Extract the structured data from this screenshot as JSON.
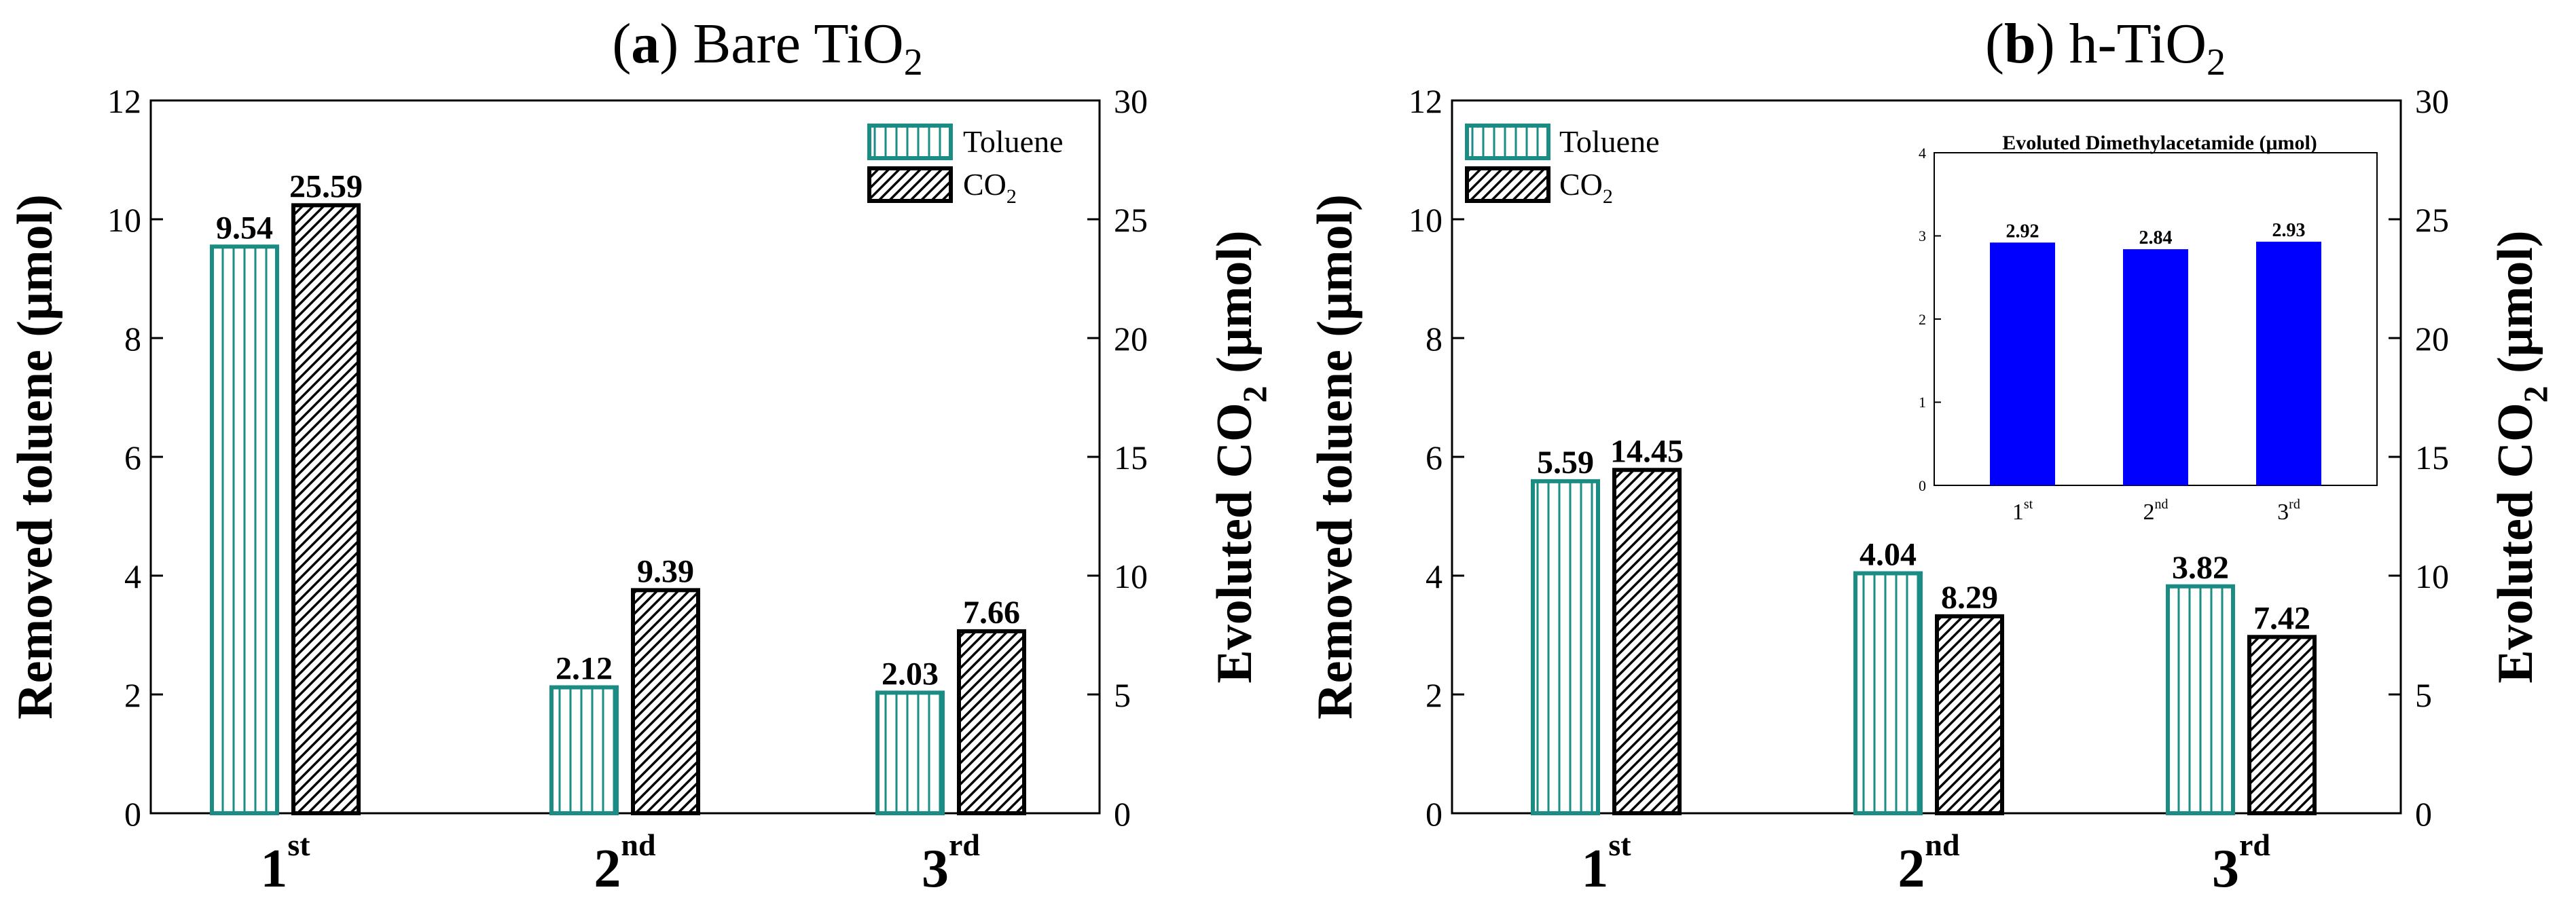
{
  "figure": {
    "panels": [
      {
        "id": "a",
        "title_letter": "a",
        "title_text": "Bare TiO",
        "title_sub": "2"
      },
      {
        "id": "b",
        "title_letter": "b",
        "title_text": "h-TiO",
        "title_sub": "2"
      }
    ]
  },
  "chart_data": [
    {
      "type": "bar",
      "panel": "a",
      "title": "(a) Bare TiO2",
      "categories": [
        {
          "base": "1",
          "sup": "st"
        },
        {
          "base": "2",
          "sup": "nd"
        },
        {
          "base": "3",
          "sup": "rd"
        }
      ],
      "ylabel": "Removed toluene (μmol)",
      "y2label_base": "Evoluted CO",
      "y2label_sub": "2",
      "y2label_tail": " (μmol)",
      "ylim": [
        0,
        12
      ],
      "y2lim": [
        0,
        30
      ],
      "yticks": [
        0,
        2,
        4,
        6,
        8,
        10,
        12
      ],
      "y2ticks": [
        0,
        5,
        10,
        15,
        20,
        25,
        30
      ],
      "legend": {
        "position": "top-right",
        "entries": [
          {
            "label": "Toluene",
            "sub": ""
          },
          {
            "label": "CO",
            "sub": "2"
          }
        ]
      },
      "series": [
        {
          "name": "Toluene",
          "axis": "left",
          "values": [
            9.54,
            2.12,
            2.03
          ],
          "labels": [
            "9.54",
            "2.12",
            "2.03"
          ],
          "color": "#1a8c84"
        },
        {
          "name": "CO2",
          "axis": "right",
          "values": [
            25.59,
            9.39,
            7.66
          ],
          "labels": [
            "25.59",
            "9.39",
            "7.66"
          ],
          "color": "#000000"
        }
      ]
    },
    {
      "type": "bar",
      "panel": "b",
      "title": "(b) h-TiO2",
      "categories": [
        {
          "base": "1",
          "sup": "st"
        },
        {
          "base": "2",
          "sup": "nd"
        },
        {
          "base": "3",
          "sup": "rd"
        }
      ],
      "ylabel": "Removed toluene (μmol)",
      "y2label_base": "Evoluted CO",
      "y2label_sub": "2",
      "y2label_tail": " (μmol)",
      "ylim": [
        0,
        12
      ],
      "y2lim": [
        0,
        30
      ],
      "yticks": [
        0,
        2,
        4,
        6,
        8,
        10,
        12
      ],
      "y2ticks": [
        0,
        5,
        10,
        15,
        20,
        25,
        30
      ],
      "legend": {
        "position": "top-left",
        "entries": [
          {
            "label": "Toluene",
            "sub": ""
          },
          {
            "label": "CO",
            "sub": "2"
          }
        ]
      },
      "series": [
        {
          "name": "Toluene",
          "axis": "left",
          "values": [
            5.59,
            4.04,
            3.82
          ],
          "labels": [
            "5.59",
            "4.04",
            "3.82"
          ],
          "color": "#1a8c84"
        },
        {
          "name": "CO2",
          "axis": "right",
          "values": [
            14.45,
            8.29,
            7.42
          ],
          "labels": [
            "14.45",
            "8.29",
            "7.42"
          ],
          "color": "#000000"
        }
      ]
    },
    {
      "type": "bar",
      "panel": "b-inset",
      "title": "Evoluted Dimethylacetamide (μmol)",
      "categories": [
        {
          "base": "1",
          "sup": "st"
        },
        {
          "base": "2",
          "sup": "nd"
        },
        {
          "base": "3",
          "sup": "rd"
        }
      ],
      "ylim": [
        0,
        4
      ],
      "yticks": [
        0,
        1,
        2,
        3,
        4
      ],
      "series": [
        {
          "name": "Dimethylacetamide",
          "values": [
            2.92,
            2.84,
            2.93
          ],
          "labels": [
            "2.92",
            "2.84",
            "2.93"
          ],
          "color": "#0000ff"
        }
      ]
    }
  ]
}
